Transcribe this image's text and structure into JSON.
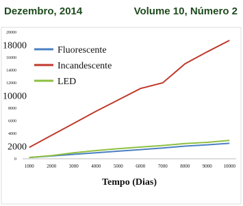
{
  "header": {
    "date": "Dezembro, 2014",
    "issue": "Volume 10, Número 2"
  },
  "chart_data": {
    "type": "line",
    "x_label": "Tempo (Dias)",
    "x": [
      1000,
      2000,
      3000,
      4000,
      5000,
      6000,
      7000,
      8000,
      9000,
      10000
    ],
    "xlim": [
      700,
      10300
    ],
    "xticks": [
      1000,
      2000,
      3000,
      4000,
      5000,
      6000,
      7000,
      8000,
      9000,
      10000
    ],
    "ylim": [
      0,
      20000
    ],
    "yticks": [
      0,
      2000,
      4000,
      6000,
      8000,
      10000,
      12000,
      14000,
      16000,
      18000,
      20000
    ],
    "legend": "upper-left",
    "series": [
      {
        "name": "Fluorescente",
        "color": "#4a7fc1",
        "values": [
          200,
          450,
          700,
          950,
          1200,
          1450,
          1700,
          2000,
          2200,
          2450
        ]
      },
      {
        "name": "Incandescente",
        "color": "#c0392b",
        "values": [
          1800,
          3700,
          5600,
          7500,
          9300,
          11100,
          12000,
          15000,
          16900,
          18700
        ]
      },
      {
        "name": "LED",
        "color": "#8dbf3f",
        "values": [
          200,
          500,
          950,
          1300,
          1600,
          1850,
          2100,
          2400,
          2600,
          2900
        ]
      }
    ]
  }
}
